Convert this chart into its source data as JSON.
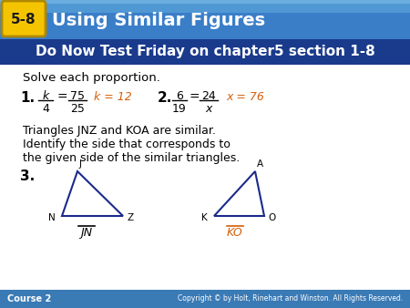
{
  "title_number_text": "5-8",
  "title_text": "Using Similar Figures",
  "subtitle_text": "Do Now Test Friday on chapter5 section 1-8",
  "footer_left": "Course 2",
  "footer_right": "Copyright © by Holt, Rinehart and Winston. All Rights Reserved.",
  "solve_text": "Solve each proportion.",
  "answer1_text": "k = 12",
  "answer2_text": "x = 76",
  "triangle_line1": "Triangles JNZ and KOA are similar.",
  "triangle_line2": "Identify the side that corresponds to",
  "triangle_line3": "the given side of the similar triangles.",
  "header_bg": "#2a6db5",
  "header_bg2": "#5599cc",
  "badge_bg": "#f5c400",
  "badge_border": "#d4a000",
  "subtitle_bg": "#1a3a8c",
  "subtitle_text_color": "#ffffff",
  "body_bg": "#ffffff",
  "outer_bg": "#c8dcea",
  "footer_bg": "#3a7ab5",
  "footer_text_color": "#ffffff",
  "black": "#000000",
  "orange": "#d45f0a",
  "dark_blue": "#1a2a7a",
  "triangle_color": "#1a2a8c"
}
